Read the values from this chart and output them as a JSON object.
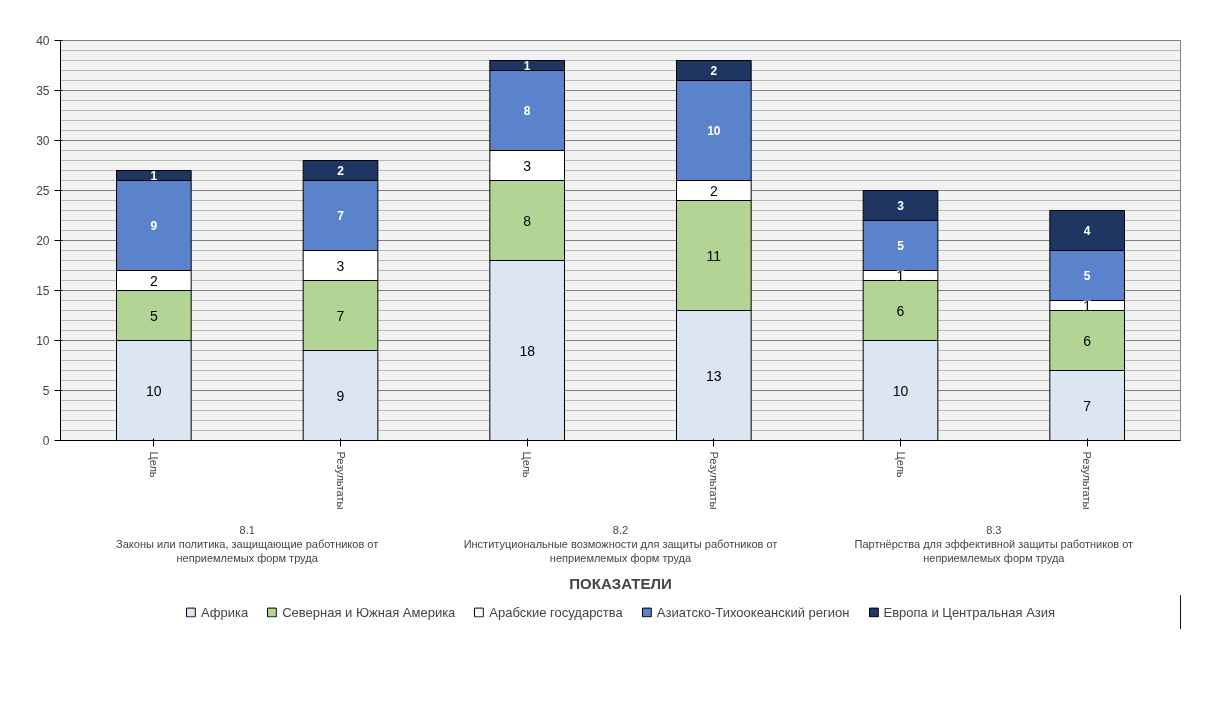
{
  "chart_data": {
    "type": "bar",
    "stacked": true,
    "xlabel": "ПОКАЗАТЕЛИ",
    "categories": [
      "Цель",
      "Результаты",
      "Цель",
      "Результаты",
      "Цель",
      "Результаты"
    ],
    "annotations": [
      "8.1\nЗаконы или политика, защищающие работников от\nнеприемлемых форм труда",
      "8.2\nИнституциональные возможности для защиты работников от\nнеприемлемых форм труда",
      "8.3\nПартнёрства для эффективной защиты работников от\nнеприемлемых форм труда"
    ],
    "series": [
      {
        "name": "Африка",
        "color": "#dce6f2",
        "values": [
          10,
          9,
          18,
          13,
          10,
          7
        ]
      },
      {
        "name": "Северная и Южная Америка",
        "color": "#b2d596",
        "values": [
          5,
          7,
          8,
          11,
          6,
          6
        ]
      },
      {
        "name": "Арабские государства",
        "color": "#ffffff",
        "values": [
          2,
          3,
          3,
          2,
          1,
          1
        ]
      },
      {
        "name": "Азиатско-Тихоокеанский регион",
        "color": "#5b83cb",
        "values": [
          9,
          7,
          8,
          10,
          5,
          5
        ]
      },
      {
        "name": "Европа и Центральная Азия",
        "color": "#1f3562",
        "values": [
          1,
          2,
          1,
          2,
          3,
          4
        ]
      }
    ],
    "ylim": [
      0,
      40
    ],
    "yticks": [
      0,
      {
        "value": 1,
        "label": null
      },
      {
        "value": 2,
        "label": null
      },
      {
        "value": 3,
        "label": null
      },
      {
        "value": 4,
        "label": null
      },
      5,
      {
        "value": 6,
        "label": null
      },
      {
        "value": 7,
        "label": null
      },
      {
        "value": 8,
        "label": null
      },
      {
        "value": 9,
        "label": null
      },
      10,
      {
        "value": 11,
        "label": null
      },
      {
        "value": 12,
        "label": null
      },
      {
        "value": 13,
        "label": null
      },
      {
        "value": 14,
        "label": null
      },
      15,
      {
        "value": 16,
        "label": null
      },
      {
        "value": 17,
        "label": null
      },
      {
        "value": 18,
        "label": null
      },
      {
        "value": 19,
        "label": null
      },
      20,
      {
        "value": 21,
        "label": null
      },
      {
        "value": 22,
        "label": null
      },
      {
        "value": 23,
        "label": null
      },
      {
        "value": 24,
        "label": null
      },
      25,
      {
        "value": 26,
        "label": null
      },
      {
        "value": 27,
        "label": null
      },
      {
        "value": 28,
        "label": null
      },
      {
        "value": 29,
        "label": null
      },
      30,
      {
        "value": 31,
        "label": null
      },
      {
        "value": 32,
        "label": null
      },
      {
        "value": 33,
        "label": null
      },
      {
        "value": 34,
        "label": null
      },
      35,
      {
        "value": 36,
        "label": null
      },
      {
        "value": 37,
        "label": null
      },
      {
        "value": 38,
        "label": null
      },
      {
        "value": 39,
        "label": null
      },
      40
    ],
    "grid": "y",
    "legend": "bottom",
    "data_labels": true
  }
}
